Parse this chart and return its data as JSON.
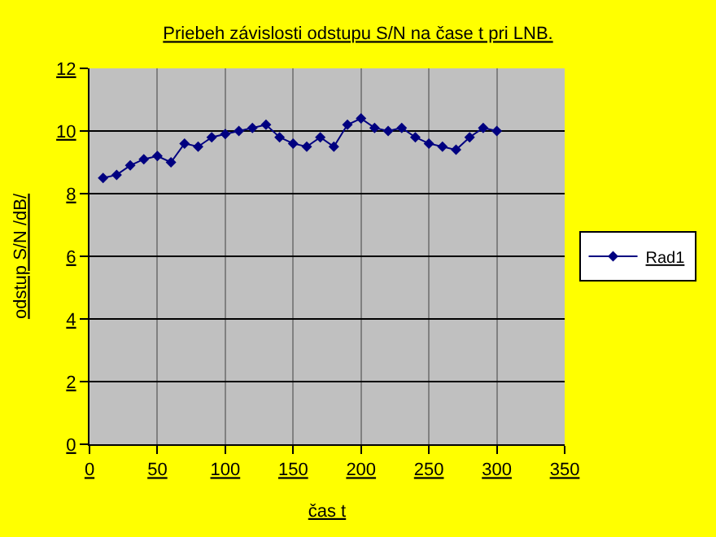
{
  "chart_data": {
    "type": "line",
    "title": "Priebeh závislosti odstupu S/N na čase t pri LNB.",
    "xlabel": "čas t",
    "ylabel": "odstup S/N /dB/",
    "x": [
      10,
      20,
      30,
      40,
      50,
      60,
      70,
      80,
      90,
      100,
      110,
      120,
      130,
      140,
      150,
      160,
      170,
      180,
      190,
      200,
      210,
      220,
      230,
      240,
      250,
      260,
      270,
      280,
      290,
      300
    ],
    "series": [
      {
        "name": "Rad1",
        "color": "#000080",
        "values": [
          8.5,
          8.6,
          8.9,
          9.1,
          9.2,
          9.0,
          9.6,
          9.5,
          9.8,
          9.9,
          10.0,
          10.1,
          10.2,
          9.8,
          9.6,
          9.5,
          9.8,
          9.5,
          10.2,
          10.4,
          10.1,
          10.0,
          10.1,
          9.8,
          9.6,
          9.5,
          9.4,
          9.8,
          10.1,
          10.0
        ]
      }
    ],
    "xlim": [
      0,
      350
    ],
    "xticks": [
      0,
      50,
      100,
      150,
      200,
      250,
      300,
      350
    ],
    "ylim": [
      0,
      12
    ],
    "yticks": [
      0,
      2,
      4,
      6,
      8,
      10,
      12
    ],
    "grid": true,
    "legend": "right",
    "marker": "diamond",
    "line_style": "solid"
  }
}
